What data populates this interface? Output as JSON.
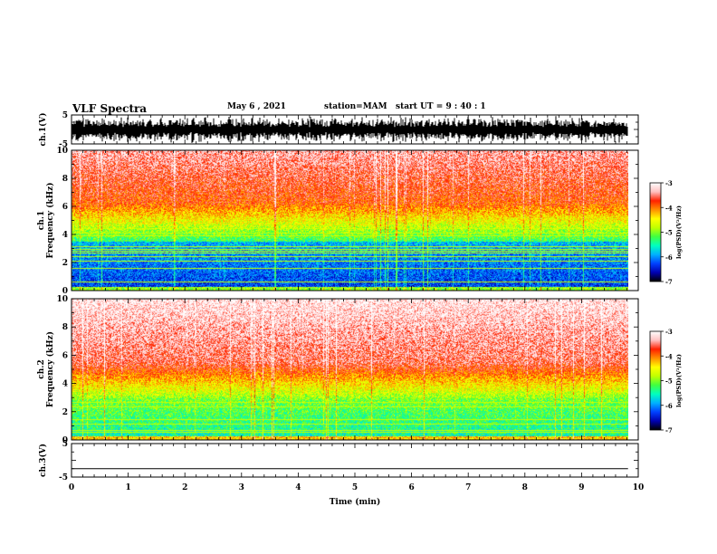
{
  "header": {
    "title": "VLF Spectra",
    "date": "May 6  , 2021",
    "station": "station=MAM",
    "start": "start  UT  =   9  : 40 : 1"
  },
  "chart_data": {
    "type": "heatmap",
    "x": {
      "label": "Time  (min)",
      "range": [
        0,
        10
      ],
      "ticks": [
        "0",
        "1",
        "2",
        "3",
        "4",
        "5",
        "6",
        "7",
        "8",
        "9",
        "10"
      ]
    },
    "panels": [
      {
        "id": "ch1-waveform",
        "type": "line",
        "ylabel": "ch.1(V)",
        "ylim": [
          -5,
          5
        ],
        "yticks": [
          "5",
          "-5"
        ]
      },
      {
        "id": "ch1-spectrogram",
        "type": "heatmap",
        "ylabel_top": "ch.1",
        "ylabel": "Frequency  (kHz)",
        "ylim": [
          0,
          10
        ],
        "yticks": [
          "0",
          "2",
          "4",
          "6",
          "8",
          "10"
        ]
      },
      {
        "id": "ch2-spectrogram",
        "type": "heatmap",
        "ylabel_top": "ch.2",
        "ylabel": "Frequency  (kHz)",
        "ylim": [
          0,
          10
        ],
        "yticks": [
          "0",
          "2",
          "4",
          "6",
          "8",
          "10"
        ]
      },
      {
        "id": "ch3-waveform",
        "type": "line",
        "ylabel": "ch.3(V)",
        "ylim": [
          -5,
          5
        ],
        "yticks": [
          "5",
          "-5"
        ],
        "value": -2.5
      }
    ],
    "colorbar": {
      "label": "log(PSD)(V²/Hz)",
      "range": [
        -7,
        -3
      ],
      "ticks": [
        "-3",
        "-4",
        "-5",
        "-6",
        "-7"
      ],
      "colors": [
        "#000000",
        "#0000b0",
        "#0040ff",
        "#00b0ff",
        "#00ffc0",
        "#40ff40",
        "#c0ff00",
        "#ffff00",
        "#ff9000",
        "#ff2000",
        "#ffc0c0",
        "#ffffff"
      ]
    }
  }
}
